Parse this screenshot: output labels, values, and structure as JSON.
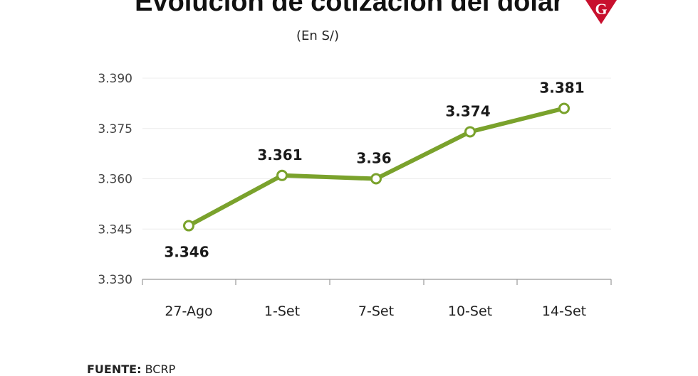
{
  "header": {
    "title": "Evolución de cotización del dólar",
    "subtitle": "(En S/)"
  },
  "logo": {
    "icon": "gestion-g-logo-icon",
    "letter": "G",
    "color": "#c8102e"
  },
  "footer": {
    "source_label": "FUENTE:",
    "source_value": "BCRP"
  },
  "chart_data": {
    "type": "line",
    "title": "Evolución de cotización del dólar",
    "subtitle": "(En S/)",
    "xlabel": "",
    "ylabel": "",
    "categories": [
      "27-Ago",
      "1-Set",
      "7-Set",
      "10-Set",
      "14-Set"
    ],
    "values": [
      3.346,
      3.361,
      3.36,
      3.374,
      3.381
    ],
    "data_labels": [
      "3.346",
      "3.361",
      "3.36",
      "3.374",
      "3.381"
    ],
    "yticks": [
      "3.390",
      "3.375",
      "3.360",
      "3.345",
      "3.330"
    ],
    "ytick_values": [
      3.39,
      3.375,
      3.36,
      3.345,
      3.33
    ],
    "ylim": [
      3.33,
      3.39
    ],
    "grid": true,
    "legend": "none",
    "line_color": "#7aa22c",
    "marker_fill": "#ffffff"
  }
}
